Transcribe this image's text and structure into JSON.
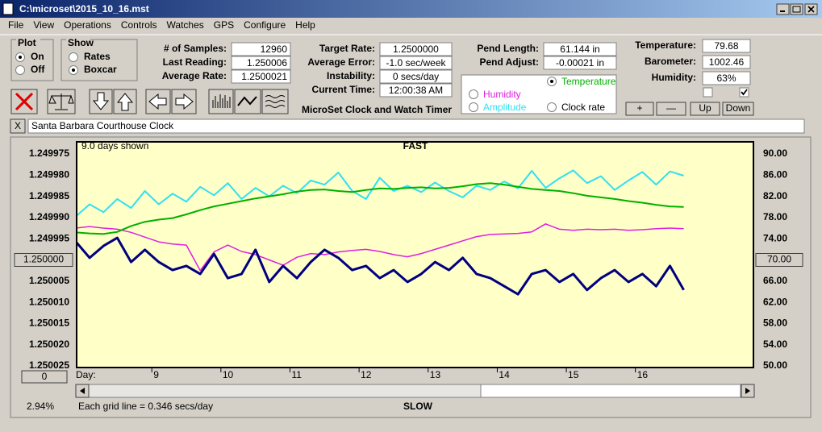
{
  "window_title": "C:\\microset\\2015_10_16.mst",
  "menu": [
    "File",
    "View",
    "Operations",
    "Controls",
    "Watches",
    "GPS",
    "Configure",
    "Help"
  ],
  "plot_group": {
    "title": "Plot",
    "options": [
      "On",
      "Off"
    ],
    "selected": 0
  },
  "show_group": {
    "title": "Show",
    "options": [
      "Rates",
      "Boxcar"
    ],
    "selected": 1
  },
  "fields": [
    {
      "label": "# of Samples:",
      "value": "12960"
    },
    {
      "label": "Last Reading:",
      "value": "1.250006"
    },
    {
      "label": "Average Rate:",
      "value": "1.2500021"
    },
    {
      "label": "Target Rate:",
      "value": "1.2500000"
    },
    {
      "label": "Average Error:",
      "value": "-1.0 sec/week"
    },
    {
      "label": "Instability:",
      "value": "0 secs/day"
    },
    {
      "label": "Current Time:",
      "value": "12:00:38 AM"
    },
    {
      "label": "Pend Length:",
      "value": "61.144 in"
    },
    {
      "label": "Pend Adjust:",
      "value": "-0.00021 in"
    },
    {
      "label": "Temperature:",
      "value": "79.68"
    },
    {
      "label": "Barometer:",
      "value": "1002.46"
    },
    {
      "label": "Humidity:",
      "value": "63%"
    }
  ],
  "app_name": "MicroSet Clock and Watch Timer",
  "buttons": [
    "+",
    "—",
    "Up",
    "Down"
  ],
  "checkboxes": [
    false,
    true
  ],
  "close_button": "X",
  "clock_name": "Santa Barbara Courthouse Clock",
  "status": {
    "days_shown": "9.0 days shown",
    "fast": "FAST",
    "slow": "SLOW",
    "day_label": "Day:",
    "offset_button": "0",
    "percent": "2.94%",
    "grid_note": "Each grid line = 0.346 secs/day"
  },
  "chart_data": {
    "type": "line",
    "x": [
      7.9,
      8.1,
      8.3,
      8.5,
      8.7,
      8.9,
      9.1,
      9.3,
      9.5,
      9.7,
      9.9,
      10.1,
      10.3,
      10.5,
      10.7,
      10.9,
      11.1,
      11.3,
      11.5,
      11.7,
      11.9,
      12.1,
      12.3,
      12.5,
      12.7,
      12.9,
      13.1,
      13.3,
      13.5,
      13.7,
      13.9,
      14.1,
      14.3,
      14.5,
      14.7,
      14.9,
      15.1,
      15.3,
      15.5,
      15.7,
      15.9,
      16.1,
      16.3,
      16.5,
      16.7
    ],
    "xlim": [
      7.9,
      17.72
    ],
    "xticks": [
      9,
      10,
      11,
      12,
      13,
      14,
      15,
      16
    ],
    "ylim": [
      1.250025,
      1.249975
    ],
    "yticks": [
      1.249975,
      {
        "value": 1.24998,
        "label": "1.249980"
      },
      1.249985,
      {
        "value": 1.24999,
        "label": "1.249990"
      },
      1.249995,
      {
        "value": 1.25,
        "label": "1.250000"
      },
      1.250005,
      {
        "value": 1.25001,
        "label": "1.250010"
      },
      1.250015,
      {
        "value": 1.25002,
        "label": "1.250020"
      },
      1.250025
    ],
    "y2lim": [
      50,
      90
    ],
    "y2ticks": [
      {
        "value": 90,
        "label": "90.00"
      },
      {
        "value": 86,
        "label": "86.00"
      },
      {
        "value": 82,
        "label": "82.00"
      },
      {
        "value": 78,
        "label": "78.00"
      },
      {
        "value": 74,
        "label": "74.00"
      },
      {
        "value": 70,
        "label": "70.00"
      },
      {
        "value": 66,
        "label": "66.00"
      },
      {
        "value": 62,
        "label": "62.00"
      },
      {
        "value": 58,
        "label": "58.00"
      },
      {
        "value": 54,
        "label": "54.00"
      },
      {
        "value": 50,
        "label": "50.00"
      }
    ],
    "grid": false,
    "selected_series": 1,
    "series": [
      {
        "name": "Clock rate",
        "color": "#000080",
        "values": [
          1.2499957,
          1.2499995,
          1.2499967,
          1.2499948,
          1.2500005,
          1.2499976,
          1.2500005,
          1.2500024,
          1.2500014,
          1.2500033,
          1.2499986,
          1.2500043,
          1.2500033,
          1.2499976,
          1.2500052,
          1.2500014,
          1.2500043,
          1.2500005,
          1.2499976,
          1.2499995,
          1.2500024,
          1.2500014,
          1.2500043,
          1.2500024,
          1.2500052,
          1.2500033,
          1.2500005,
          1.2500024,
          1.2499995,
          1.2500033,
          1.2500043,
          1.2500062,
          1.2500081,
          1.2500033,
          1.2500024,
          1.2500052,
          1.2500033,
          1.2500071,
          1.2500043,
          1.2500024,
          1.2500052,
          1.2500033,
          1.2500062,
          1.2500014,
          1.2500071
        ]
      },
      {
        "name": "Temperature",
        "color": "#00b000",
        "axis": "y2",
        "values": [
          75.2,
          75.0,
          74.9,
          75.3,
          76.4,
          77.2,
          77.6,
          77.9,
          78.6,
          79.4,
          80.1,
          80.6,
          81.1,
          81.6,
          82.0,
          82.4,
          82.9,
          83.2,
          83.3,
          83.0,
          82.8,
          83.2,
          83.5,
          83.4,
          83.6,
          83.7,
          83.5,
          83.6,
          83.9,
          84.3,
          84.5,
          84.2,
          83.8,
          83.4,
          83.2,
          83.0,
          82.6,
          82.1,
          81.8,
          81.5,
          81.1,
          80.8,
          80.4,
          80.1,
          80.0
        ]
      },
      {
        "name": "Humidity",
        "color": "#e020e0",
        "axis": "y2",
        "values": [
          76.0,
          76.3,
          76.0,
          75.8,
          75.2,
          74.3,
          73.4,
          73.0,
          72.8,
          68.0,
          71.5,
          72.8,
          71.6,
          71.0,
          70.0,
          69.0,
          70.5,
          71.2,
          71.0,
          71.5,
          71.8,
          72.0,
          71.6,
          71.0,
          70.6,
          71.2,
          72.0,
          72.8,
          73.6,
          74.4,
          74.8,
          74.9,
          75.0,
          75.3,
          76.8,
          75.8,
          75.6,
          75.8,
          75.7,
          75.8,
          75.6,
          75.7,
          75.9,
          76.0,
          75.9
        ]
      },
      {
        "name": "Amplitude",
        "color": "#30e0f0",
        "axis": "y2",
        "values": [
          78.2,
          80.5,
          79.0,
          81.5,
          79.8,
          83.0,
          80.5,
          82.5,
          81.0,
          83.8,
          82.2,
          84.5,
          81.5,
          83.6,
          82.0,
          84.0,
          82.6,
          85.0,
          84.2,
          86.5,
          83.0,
          81.5,
          85.5,
          83.0,
          84.0,
          82.8,
          84.6,
          83.0,
          81.8,
          84.0,
          83.2,
          84.8,
          83.5,
          86.8,
          83.6,
          85.4,
          86.9,
          84.5,
          85.8,
          83.2,
          85.0,
          86.6,
          84.2,
          86.7,
          85.9
        ]
      }
    ]
  }
}
